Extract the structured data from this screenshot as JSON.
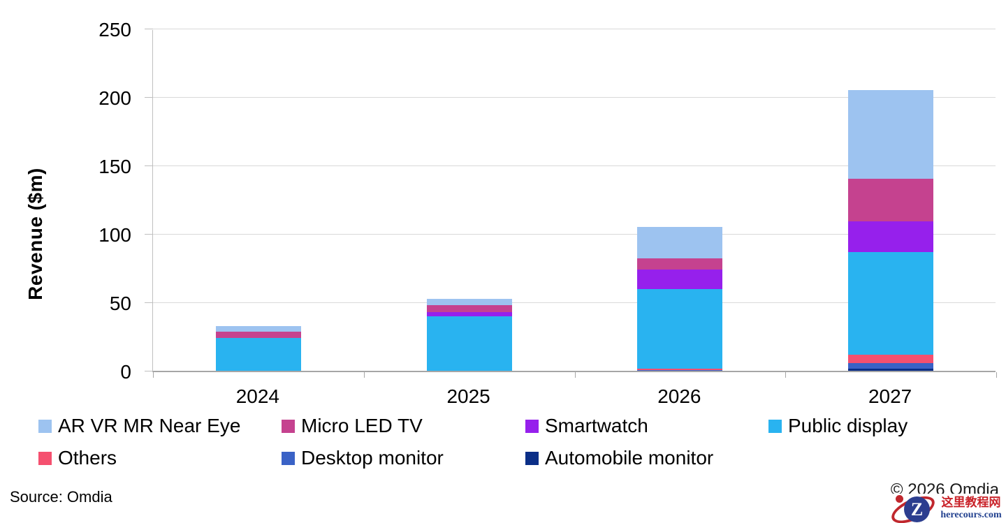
{
  "chart_data": {
    "type": "bar",
    "stacked": true,
    "title": "",
    "xlabel": "",
    "ylabel": "Revenue ($m)",
    "ylim": [
      0,
      250
    ],
    "yticks": [
      0,
      50,
      100,
      150,
      200,
      250
    ],
    "grid": true,
    "legend_position": "bottom",
    "categories": [
      "2024",
      "2025",
      "2026",
      "2027"
    ],
    "series": [
      {
        "name": "Automobile monitor",
        "color": "#0B2E87",
        "values": [
          0,
          0,
          0.2,
          1.5
        ]
      },
      {
        "name": "Desktop monitor",
        "color": "#3A62C6",
        "values": [
          0,
          0,
          0.3,
          4
        ]
      },
      {
        "name": "Others",
        "color": "#F5506F",
        "values": [
          0,
          0,
          1,
          6
        ]
      },
      {
        "name": "Public display",
        "color": "#29B3F0",
        "values": [
          24,
          40,
          58,
          75
        ]
      },
      {
        "name": "Smartwatch",
        "color": "#9620EC",
        "values": [
          0,
          3,
          14.5,
          22.5
        ]
      },
      {
        "name": "Micro LED TV",
        "color": "#C5428F",
        "values": [
          4.5,
          5,
          8,
          31.5
        ]
      },
      {
        "name": "AR VR MR Near Eye",
        "color": "#9DC3F0",
        "values": [
          4,
          4.5,
          23,
          64.5
        ]
      }
    ],
    "totals": [
      32.5,
      52.5,
      105,
      205
    ]
  },
  "legend": {
    "rows": [
      [
        "AR VR MR Near Eye",
        "Micro LED TV",
        "Smartwatch",
        "Public display"
      ],
      [
        "Others",
        "Desktop monitor",
        "Automobile monitor"
      ]
    ]
  },
  "footer": {
    "source": "Source: Omdia",
    "copyright": "© 2026 Omdia"
  },
  "watermark": {
    "logo_letter": "Z",
    "site_name": "这里教程网",
    "site_url": "herecours.com",
    "accent_red": "#C0272D",
    "accent_navy": "#2C3E8F"
  }
}
